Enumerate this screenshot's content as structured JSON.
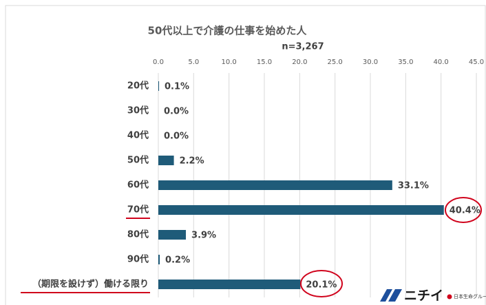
{
  "chart_data": {
    "type": "bar",
    "orientation": "horizontal",
    "title": "50代以上で介護の仕事を始めた人",
    "subtitle": "n=3,267",
    "categories": [
      "20代",
      "30代",
      "40代",
      "50代",
      "60代",
      "70代",
      "80代",
      "90代",
      "（期限を設けず）働ける限り"
    ],
    "values": [
      0.1,
      0.0,
      0.0,
      2.2,
      33.1,
      40.4,
      3.9,
      0.2,
      20.1
    ],
    "value_labels": [
      "0.1%",
      "0.0%",
      "0.0%",
      "2.2%",
      "33.1%",
      "40.4%",
      "3.9%",
      "0.2%",
      "20.1%"
    ],
    "color": "#1f5b79",
    "xlim": [
      0,
      45
    ],
    "xticks": [
      {
        "value": 0,
        "label": "0.0"
      },
      {
        "value": 5,
        "label": "5.0"
      },
      {
        "value": 10,
        "label": "10.0"
      },
      {
        "value": 15,
        "label": "15.0"
      },
      {
        "value": 20,
        "label": "20.0"
      },
      {
        "value": 25,
        "label": "25.0"
      },
      {
        "value": 30,
        "label": "30.0"
      },
      {
        "value": 35,
        "label": "35.0"
      },
      {
        "value": 40,
        "label": "40.0"
      },
      {
        "value": 45,
        "label": "45.0"
      }
    ],
    "grid": true
  },
  "brand": "ニチイ",
  "brand_group": "日本生命グループ"
}
